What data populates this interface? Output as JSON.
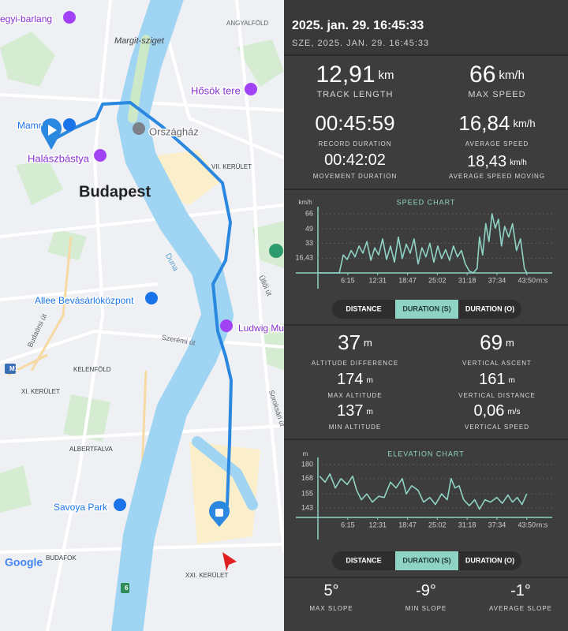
{
  "map": {
    "labels": [
      "egyi-barlang",
      "ANGYALFÖLD",
      "Margit-sziget",
      "Hősök tere",
      "Mamr",
      "Országház",
      "Halászbástya",
      "VII. KERÜLET",
      "Budapest",
      "Duna",
      "Üllői út",
      "Allee Bevásárlóközpont",
      "Ludwig Mu",
      "Budaörsi út",
      "Szerémi út",
      "M1",
      "KELENFÖLD",
      "XI. KERÜLET",
      "Soroksári út",
      "ALBERTFALVA",
      "Savoya Park",
      "Google",
      "BUDAFOK",
      "6",
      "XXI. KERÜLET"
    ]
  },
  "header": {
    "title": "2025. jan. 29. 16:45:33",
    "subtitle": "SZE, 2025. JAN. 29. 16:45:33"
  },
  "stats": [
    {
      "value": "12,91",
      "unit": "km",
      "label": "TRACK LENGTH"
    },
    {
      "value": "66",
      "unit": "km/h",
      "label": "MAX SPEED"
    },
    {
      "value": "00:45:59",
      "label": "RECORD DURATION"
    },
    {
      "value": "16,84",
      "unit": "km/h",
      "label": "AVERAGE SPEED"
    },
    {
      "value": "00:42:02",
      "label": "MOVEMENT DURATION"
    },
    {
      "value": "18,43",
      "unit": "km/h",
      "label": "AVERAGE SPEED MOVING"
    }
  ],
  "speed_chart": {
    "type": "line",
    "title": "SPEED CHART",
    "y_unit": "km/h",
    "x_unit": "m:s",
    "color": "#8fd3c5",
    "x": [
      20,
      268,
      317,
      367,
      417,
      466,
      516,
      565,
      615,
      665,
      714,
      764,
      813,
      863,
      913,
      962,
      1012,
      1061,
      1111,
      1161,
      1210,
      1260,
      1309,
      1359,
      1409,
      1458,
      1508,
      1557,
      1607,
      1657,
      1706,
      1756,
      1806,
      1855,
      1905,
      1954,
      2004,
      2034,
      2073,
      2113,
      2153,
      2192,
      2232,
      2272,
      2311,
      2351,
      2401,
      2450,
      2500,
      2550,
      2599,
      2629
    ],
    "values": [
      0,
      0,
      20,
      15,
      25,
      18,
      30,
      22,
      35,
      14,
      28,
      20,
      38,
      15,
      30,
      12,
      40,
      16,
      32,
      22,
      38,
      10,
      28,
      18,
      33,
      12,
      30,
      16,
      26,
      14,
      30,
      18,
      25,
      10,
      2,
      0,
      5,
      40,
      20,
      55,
      35,
      66,
      50,
      60,
      30,
      52,
      40,
      55,
      25,
      38,
      5,
      0
    ],
    "xlim": [
      -280,
      2950
    ],
    "ylim": [
      0,
      74
    ],
    "xticks": [
      {
        "value": 375,
        "label": "6:15"
      },
      {
        "value": 751,
        "label": "12:31"
      },
      {
        "value": 1127,
        "label": "18:47"
      },
      {
        "value": 1502,
        "label": "25:02"
      },
      {
        "value": 1878,
        "label": "31:18"
      },
      {
        "value": 2254,
        "label": "37:34"
      },
      {
        "value": 2630,
        "label": "43:50"
      }
    ],
    "yticks": [
      {
        "value": 16.43,
        "label": "16,43"
      },
      33,
      49,
      66
    ]
  },
  "speed_tabs": [
    "DISTANCE",
    "DURATION (S)",
    "DURATION (O)"
  ],
  "altitude_stats": [
    {
      "value": "37",
      "unit": "m",
      "label": "ALTITUDE DIFFERENCE"
    },
    {
      "value": "69",
      "unit": "m",
      "label": "VERTICAL ASCENT"
    },
    {
      "value": "174",
      "unit": "m",
      "label": "MAX ALTITUDE"
    },
    {
      "value": "161",
      "unit": "m",
      "label": "VERTICAL DISTANCE"
    },
    {
      "value": "137",
      "unit": "m",
      "label": "MIN ALTITUDE"
    },
    {
      "value": "0,06",
      "unit": "m/s",
      "label": "VERTICAL SPEED"
    }
  ],
  "elevation_chart": {
    "type": "line",
    "title": "ELEVATION CHART",
    "y_unit": "m",
    "x_unit": "m:s",
    "color": "#8fd3c5",
    "x": [
      20,
      89,
      149,
      218,
      288,
      367,
      436,
      486,
      546,
      615,
      684,
      764,
      833,
      913,
      982,
      1061,
      1111,
      1180,
      1260,
      1329,
      1409,
      1478,
      1557,
      1627,
      1676,
      1726,
      1776,
      1835,
      1905,
      1974,
      2034,
      2103,
      2172,
      2252,
      2321,
      2391,
      2450,
      2510,
      2569,
      2629
    ],
    "values": [
      170,
      165,
      172,
      160,
      168,
      163,
      170,
      158,
      150,
      155,
      148,
      153,
      152,
      165,
      160,
      168,
      155,
      162,
      158,
      148,
      152,
      146,
      155,
      150,
      168,
      160,
      162,
      150,
      145,
      150,
      142,
      150,
      148,
      152,
      147,
      154,
      148,
      152,
      146,
      155
    ],
    "xlim": [
      -280,
      2950
    ],
    "ylim": [
      135,
      186
    ],
    "xticks": [
      {
        "value": 375,
        "label": "6:15"
      },
      {
        "value": 751,
        "label": "12:31"
      },
      {
        "value": 1127,
        "label": "18:47"
      },
      {
        "value": 1502,
        "label": "25:02"
      },
      {
        "value": 1878,
        "label": "31:18"
      },
      {
        "value": 2254,
        "label": "37:34"
      },
      {
        "value": 2630,
        "label": "43:50"
      }
    ],
    "yticks": [
      143,
      155,
      168,
      180
    ]
  },
  "elevation_tabs": [
    "DISTANCE",
    "DURATION (S)",
    "DURATION (O)"
  ],
  "slope_stats": [
    {
      "value": "5°",
      "label": "MAX SLOPE"
    },
    {
      "value": "-9°",
      "label": "MIN SLOPE"
    },
    {
      "value": "-1°",
      "label": "AVERAGE SLOPE"
    }
  ]
}
